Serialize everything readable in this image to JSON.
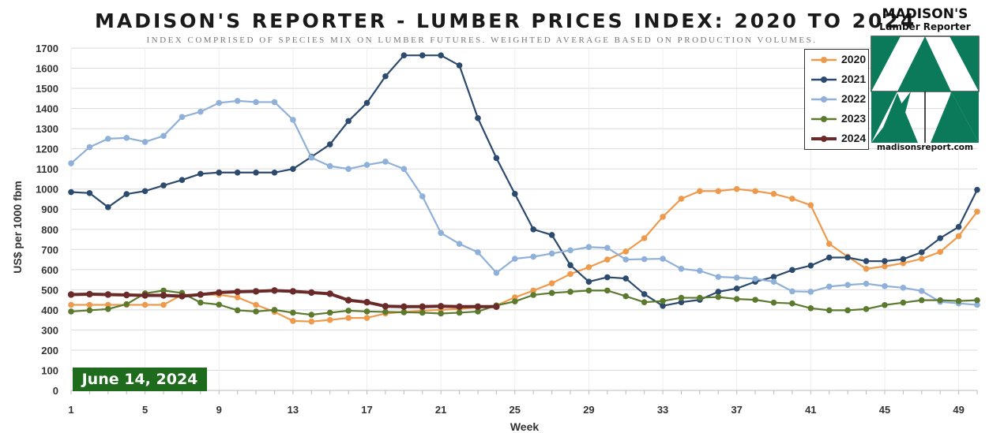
{
  "chart_data": {
    "type": "line",
    "title": "MADISON'S REPORTER - LUMBER PRICES INDEX: 2020 TO 2024",
    "subtitle": "INDEX COMPRISED OF SPECIES MIX ON LUMBER FUTURES. WEIGHTED AVERAGE BASED ON PRODUCTION VOLUMES.",
    "xlabel": "Week",
    "ylabel": "US$ per 1000 fbm",
    "xlim": [
      1,
      50
    ],
    "ylim": [
      0,
      1700
    ],
    "x_ticks": [
      1,
      5,
      9,
      13,
      17,
      21,
      25,
      29,
      33,
      37,
      41,
      45,
      49
    ],
    "y_ticks": [
      0,
      100,
      200,
      300,
      400,
      500,
      600,
      700,
      800,
      900,
      1000,
      1100,
      1200,
      1300,
      1400,
      1500,
      1600,
      1700
    ],
    "grid": true,
    "legend_position": "top-right",
    "series": [
      {
        "name": "2020",
        "color": "#ee9a4d",
        "values": [
          425,
          425,
          425,
          425,
          425,
          425,
          475,
          475,
          475,
          462,
          425,
          390,
          345,
          342,
          350,
          360,
          360,
          382,
          390,
          396,
          400,
          405,
          412,
          422,
          462,
          496,
          532,
          578,
          612,
          650,
          690,
          756,
          862,
          952,
          990,
          990,
          1000,
          990,
          976,
          952,
          920,
          728,
          664,
          604,
          616,
          632,
          654,
          688,
          766,
          888
        ]
      },
      {
        "name": "2021",
        "color": "#2b4a6e",
        "values": [
          985,
          980,
          910,
          975,
          990,
          1018,
          1045,
          1076,
          1082,
          1082,
          1082,
          1082,
          1100,
          1160,
          1222,
          1338,
          1428,
          1560,
          1664,
          1664,
          1664,
          1614,
          1352,
          1154,
          976,
          800,
          772,
          622,
          540,
          562,
          556,
          478,
          420,
          438,
          450,
          490,
          506,
          540,
          564,
          598,
          620,
          660,
          660,
          642,
          642,
          652,
          686,
          756,
          812,
          996
        ]
      },
      {
        "name": "2022",
        "color": "#8fb0d8",
        "values": [
          1128,
          1208,
          1250,
          1254,
          1234,
          1264,
          1358,
          1384,
          1428,
          1438,
          1432,
          1432,
          1344,
          1156,
          1114,
          1100,
          1120,
          1136,
          1100,
          964,
          782,
          728,
          686,
          584,
          654,
          664,
          680,
          696,
          712,
          708,
          650,
          652,
          654,
          604,
          594,
          564,
          560,
          554,
          540,
          492,
          490,
          516,
          524,
          530,
          518,
          510,
          494,
          440,
          432,
          425
        ]
      },
      {
        "name": "2023",
        "color": "#5c7a2e",
        "values": [
          392,
          398,
          404,
          428,
          482,
          496,
          484,
          436,
          426,
          398,
          392,
          400,
          386,
          376,
          386,
          396,
          392,
          390,
          388,
          386,
          382,
          386,
          392,
          422,
          442,
          474,
          484,
          490,
          496,
          496,
          468,
          438,
          444,
          460,
          460,
          464,
          454,
          450,
          436,
          432,
          408,
          398,
          398,
          404,
          424,
          436,
          448,
          448,
          444,
          448
        ]
      },
      {
        "name": "2024",
        "color": "#6b2a2a",
        "values": [
          476,
          478,
          476,
          474,
          472,
          472,
          468,
          476,
          486,
          490,
          492,
          496,
          492,
          486,
          480,
          448,
          438,
          418,
          416,
          416,
          418,
          416,
          416,
          416
        ]
      }
    ]
  },
  "date_badge": "June 14, 2024",
  "logo": {
    "name": "MADISON'S",
    "subtitle": "Lumber Reporter",
    "url": "madisonsreport.com",
    "color": "#0a7a5a"
  }
}
